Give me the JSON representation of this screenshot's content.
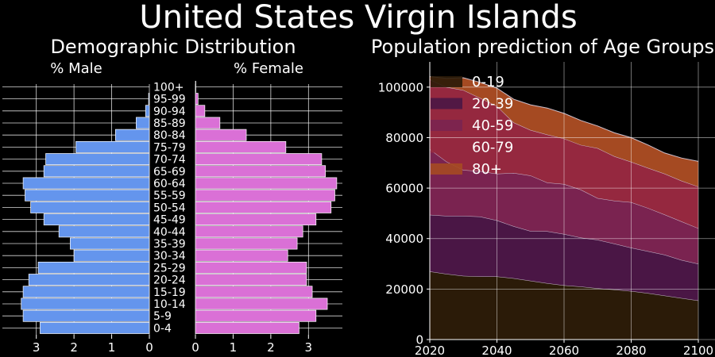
{
  "suptitle": "United States Virgin Islands",
  "chart_data": [
    {
      "type": "bar",
      "orientation": "horizontal",
      "layout": "population-pyramid",
      "title": "Demographic Distribution",
      "categories": [
        "0-4",
        "5-9",
        "10-14",
        "15-19",
        "20-24",
        "25-29",
        "30-34",
        "35-39",
        "40-44",
        "45-49",
        "50-54",
        "55-59",
        "60-64",
        "65-69",
        "70-74",
        "75-79",
        "80-84",
        "85-89",
        "90-94",
        "95-99",
        "100+"
      ],
      "series": [
        {
          "name": "% Male",
          "color": "#6495ED",
          "values": [
            2.9,
            3.35,
            3.4,
            3.35,
            3.2,
            2.95,
            2.0,
            2.1,
            2.4,
            2.8,
            3.15,
            3.3,
            3.35,
            2.8,
            2.75,
            1.95,
            0.9,
            0.35,
            0.1,
            0.02,
            0.0
          ]
        },
        {
          "name": "% Female",
          "color": "#DA70D6",
          "values": [
            2.75,
            3.2,
            3.5,
            3.1,
            2.95,
            2.95,
            2.45,
            2.7,
            2.85,
            3.2,
            3.6,
            3.7,
            3.75,
            3.45,
            3.35,
            2.4,
            1.35,
            0.65,
            0.25,
            0.07,
            0.01
          ]
        }
      ],
      "male_axis": {
        "xlim": [
          3.9,
          0
        ],
        "ticks": [
          3,
          2,
          1,
          0
        ]
      },
      "female_axis": {
        "xlim": [
          0,
          3.9
        ],
        "ticks": [
          0,
          1,
          2,
          3
        ]
      },
      "grid": true
    },
    {
      "type": "area",
      "stacked": true,
      "title": "Population prediction of Age Groups",
      "x": [
        2020,
        2025,
        2030,
        2035,
        2040,
        2045,
        2050,
        2055,
        2060,
        2065,
        2070,
        2075,
        2080,
        2085,
        2090,
        2095,
        2100
      ],
      "series": [
        {
          "name": "0-19",
          "color": "#2B1B08",
          "values": [
            27000,
            26000,
            25200,
            25000,
            25000,
            24300,
            23300,
            22300,
            21500,
            21000,
            20300,
            19800,
            19200,
            18400,
            17400,
            16400,
            15500
          ]
        },
        {
          "name": "20-39",
          "color": "#4A1645",
          "values": [
            22400,
            23000,
            23800,
            23700,
            22200,
            20600,
            19700,
            20600,
            20300,
            19400,
            19200,
            18200,
            17200,
            16600,
            16200,
            15100,
            14500
          ]
        },
        {
          "name": "40-59",
          "color": "#7A2350",
          "values": [
            26000,
            21500,
            18200,
            18000,
            18500,
            21100,
            22000,
            19300,
            19800,
            19000,
            16500,
            17000,
            18000,
            17100,
            15900,
            15300,
            14100
          ]
        },
        {
          "name": "60-79",
          "color": "#95283F",
          "values": [
            27600,
            29500,
            31600,
            29000,
            26800,
            20000,
            18000,
            19000,
            18000,
            17700,
            19800,
            17600,
            16000,
            15900,
            16200,
            16100,
            16500
          ]
        },
        {
          "name": "80+",
          "color": "#A54A22",
          "values": [
            1200,
            3500,
            4900,
            6200,
            7100,
            9200,
            10000,
            10500,
            10000,
            9700,
            8800,
            9300,
            9600,
            9100,
            8200,
            9000,
            10000
          ]
        }
      ],
      "xlim": [
        2020,
        2100
      ],
      "ylim": [
        0,
        110000
      ],
      "xticks": [
        2020,
        2040,
        2060,
        2080,
        2100
      ],
      "yticks": [
        0,
        20000,
        40000,
        60000,
        80000,
        100000
      ],
      "legend": "top-left",
      "grid": true
    }
  ]
}
